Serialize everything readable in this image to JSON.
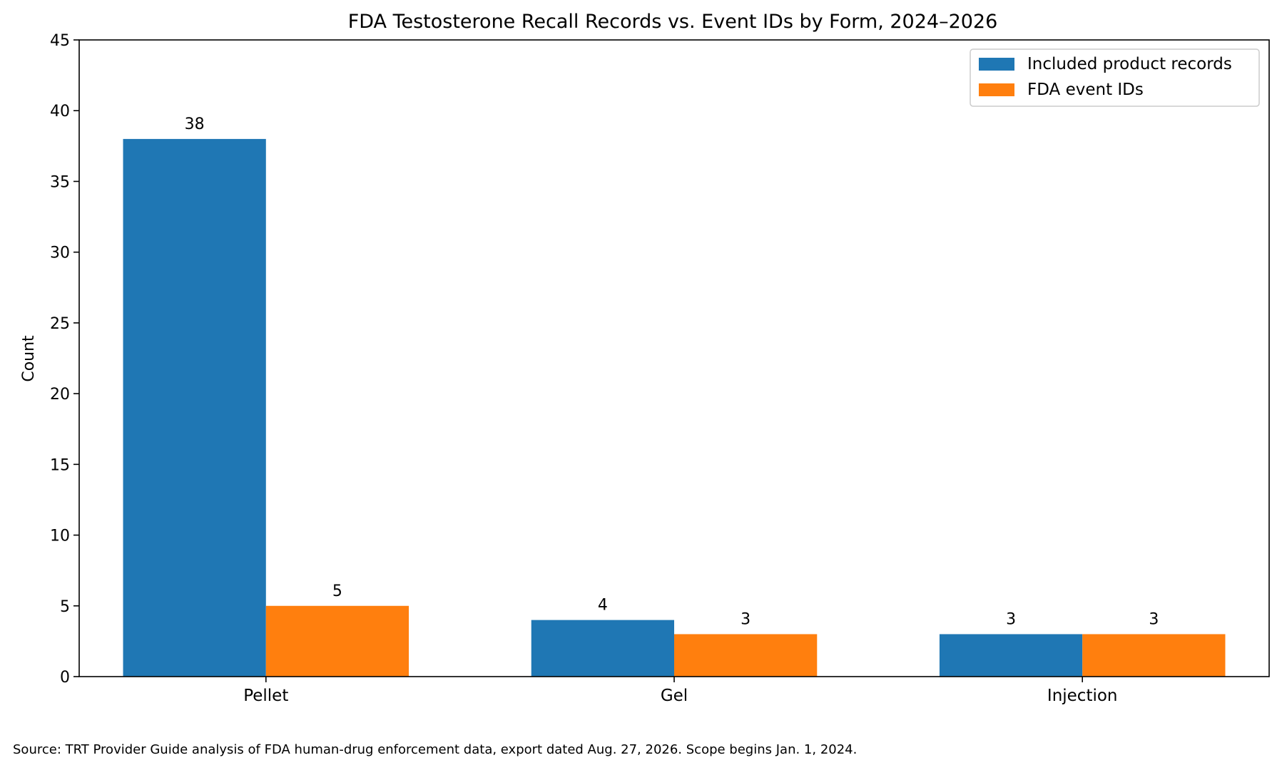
{
  "chart_data": {
    "type": "bar",
    "title": "FDA Testosterone Recall Records vs. Event IDs by Form, 2024–2026",
    "xlabel": "",
    "ylabel": "Count",
    "categories": [
      "Pellet",
      "Gel",
      "Injection"
    ],
    "series": [
      {
        "name": "Included product records",
        "values": [
          38,
          4,
          3
        ],
        "color": "#1f77b4"
      },
      {
        "name": "FDA event IDs",
        "values": [
          5,
          3,
          3
        ],
        "color": "#ff7f0e"
      }
    ],
    "ylim": [
      0,
      45
    ],
    "yticks": [
      0,
      5,
      10,
      15,
      20,
      25,
      30,
      35,
      40,
      45
    ],
    "grid": false,
    "legend_position": "top-right",
    "data_labels": true
  },
  "footer": {
    "source": "Source: TRT Provider Guide analysis of FDA human-drug enforcement data, export dated Aug. 27, 2026. Scope begins Jan. 1, 2024."
  }
}
